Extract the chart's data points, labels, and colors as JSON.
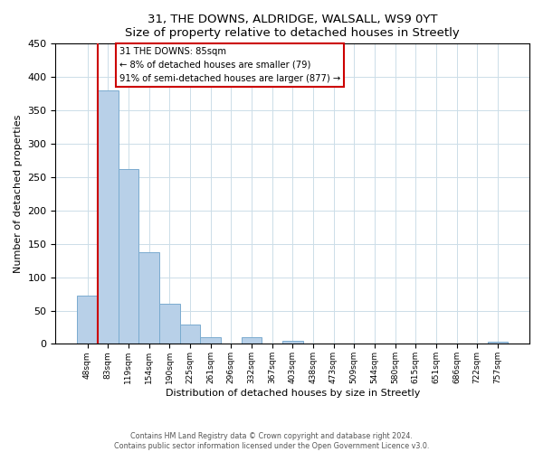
{
  "title": "31, THE DOWNS, ALDRIDGE, WALSALL, WS9 0YT",
  "subtitle": "Size of property relative to detached houses in Streetly",
  "xlabel": "Distribution of detached houses by size in Streetly",
  "ylabel": "Number of detached properties",
  "bar_labels": [
    "48sqm",
    "83sqm",
    "119sqm",
    "154sqm",
    "190sqm",
    "225sqm",
    "261sqm",
    "296sqm",
    "332sqm",
    "367sqm",
    "403sqm",
    "438sqm",
    "473sqm",
    "509sqm",
    "544sqm",
    "580sqm",
    "615sqm",
    "651sqm",
    "686sqm",
    "722sqm",
    "757sqm"
  ],
  "bar_values": [
    72,
    380,
    262,
    137,
    60,
    29,
    10,
    0,
    10,
    0,
    4,
    0,
    0,
    0,
    0,
    0,
    0,
    0,
    0,
    0,
    3
  ],
  "bar_color": "#b8d0e8",
  "bar_edge_color": "#7aabcf",
  "ylim": [
    0,
    450
  ],
  "yticks": [
    0,
    50,
    100,
    150,
    200,
    250,
    300,
    350,
    400,
    450
  ],
  "property_line_color": "#cc0000",
  "annotation_title": "31 THE DOWNS: 85sqm",
  "annotation_line1": "← 8% of detached houses are smaller (79)",
  "annotation_line2": "91% of semi-detached houses are larger (877) →",
  "annotation_box_color": "#cc0000",
  "footnote1": "Contains HM Land Registry data © Crown copyright and database right 2024.",
  "footnote2": "Contains public sector information licensed under the Open Government Licence v3.0.",
  "background_color": "#ffffff",
  "grid_color": "#ccdde8"
}
